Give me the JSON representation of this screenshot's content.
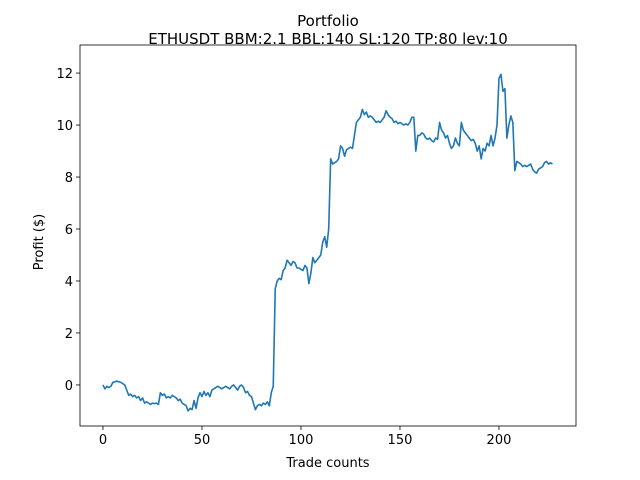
{
  "chart_data": {
    "type": "line",
    "title": "Portfolio",
    "subtitle": "ETHUSDT BBM:2.1 BBL:140 SL:120 TP:80 lev:10",
    "x_label": "Trade counts",
    "y_label": "Profit ($)",
    "color": "#1f77b4",
    "grid": false,
    "xlim": [
      -11.6,
      238.9
    ],
    "ylim": [
      -1.58,
      13.08
    ],
    "xticks": [
      0,
      50,
      100,
      150,
      200
    ],
    "yticks": [
      0,
      2,
      4,
      6,
      8,
      10,
      12
    ],
    "x": [
      0,
      1,
      2,
      3,
      4,
      5,
      6,
      7,
      8,
      9,
      10,
      11,
      12,
      13,
      14,
      15,
      16,
      17,
      18,
      19,
      20,
      21,
      22,
      23,
      24,
      25,
      26,
      27,
      28,
      29,
      30,
      31,
      32,
      33,
      34,
      35,
      36,
      37,
      38,
      39,
      40,
      41,
      42,
      43,
      44,
      45,
      46,
      47,
      48,
      49,
      50,
      51,
      52,
      53,
      54,
      55,
      56,
      57,
      58,
      59,
      60,
      61,
      62,
      63,
      64,
      65,
      66,
      67,
      68,
      69,
      70,
      71,
      72,
      73,
      74,
      75,
      76,
      77,
      78,
      79,
      80,
      81,
      82,
      83,
      84,
      85,
      86,
      87,
      88,
      89,
      90,
      91,
      92,
      93,
      94,
      95,
      96,
      97,
      98,
      99,
      100,
      101,
      102,
      103,
      104,
      105,
      106,
      107,
      108,
      109,
      110,
      111,
      112,
      113,
      114,
      115,
      116,
      117,
      118,
      119,
      120,
      121,
      122,
      123,
      124,
      125,
      126,
      127,
      128,
      129,
      130,
      131,
      132,
      133,
      134,
      135,
      136,
      137,
      138,
      139,
      140,
      141,
      142,
      143,
      144,
      145,
      146,
      147,
      148,
      149,
      150,
      151,
      152,
      153,
      154,
      155,
      156,
      157,
      158,
      159,
      160,
      161,
      162,
      163,
      164,
      165,
      166,
      167,
      168,
      169,
      170,
      171,
      172,
      173,
      174,
      175,
      176,
      177,
      178,
      179,
      180,
      181,
      182,
      183,
      184,
      185,
      186,
      187,
      188,
      189,
      190,
      191,
      192,
      193,
      194,
      195,
      196,
      197,
      198,
      199,
      200,
      201,
      202,
      203,
      204,
      205,
      206,
      207,
      208,
      209,
      210,
      211,
      212,
      213,
      214,
      215,
      216,
      217,
      218,
      219,
      220,
      221,
      222,
      223,
      224,
      225,
      226,
      227
    ],
    "values": [
      0,
      -0.15,
      -0.05,
      -0.1,
      -0.05,
      0.1,
      0.12,
      0.15,
      0.12,
      0.1,
      0.05,
      0.0,
      -0.2,
      -0.4,
      -0.35,
      -0.45,
      -0.4,
      -0.5,
      -0.45,
      -0.6,
      -0.5,
      -0.7,
      -0.65,
      -0.7,
      -0.75,
      -0.7,
      -0.72,
      -0.7,
      -0.75,
      -0.3,
      -0.4,
      -0.35,
      -0.5,
      -0.45,
      -0.5,
      -0.4,
      -0.45,
      -0.5,
      -0.6,
      -0.55,
      -0.7,
      -0.75,
      -0.8,
      -1.0,
      -0.9,
      -0.95,
      -0.6,
      -0.9,
      -0.5,
      -0.3,
      -0.45,
      -0.25,
      -0.4,
      -0.3,
      -0.45,
      -0.2,
      -0.15,
      -0.1,
      -0.05,
      -0.1,
      -0.15,
      -0.1,
      -0.05,
      -0.1,
      -0.15,
      -0.05,
      0.0,
      -0.1,
      -0.2,
      -0.05,
      0.0,
      -0.1,
      -0.3,
      -0.25,
      -0.4,
      -0.45,
      -0.7,
      -0.95,
      -0.8,
      -0.75,
      -0.8,
      -0.7,
      -0.75,
      -0.65,
      -0.8,
      -0.3,
      -0.05,
      3.7,
      4.0,
      4.1,
      4.05,
      4.4,
      4.5,
      4.8,
      4.7,
      4.6,
      4.75,
      4.7,
      4.5,
      4.5,
      4.45,
      4.4,
      4.6,
      4.5,
      3.9,
      4.3,
      4.9,
      4.7,
      4.8,
      4.9,
      5.0,
      5.5,
      5.7,
      5.3,
      6.0,
      8.7,
      8.5,
      8.55,
      8.6,
      8.7,
      9.2,
      9.1,
      8.8,
      9.05,
      9.1,
      9.15,
      9.1,
      9.6,
      10.1,
      10.2,
      10.3,
      10.6,
      10.4,
      10.5,
      10.3,
      10.35,
      10.3,
      10.2,
      10.1,
      10.15,
      10.1,
      10.2,
      10.3,
      10.55,
      10.4,
      10.3,
      10.25,
      10.1,
      10.15,
      10.05,
      10.1,
      10.05,
      10.0,
      10.05,
      10.0,
      10.1,
      10.3,
      10.3,
      9.0,
      9.6,
      9.6,
      9.7,
      9.65,
      9.5,
      9.45,
      9.5,
      9.4,
      9.35,
      9.5,
      9.45,
      10.1,
      9.8,
      9.7,
      9.5,
      9.6,
      9.3,
      9.1,
      9.2,
      9.5,
      9.3,
      9.2,
      10.1,
      9.8,
      9.7,
      9.6,
      9.5,
      9.4,
      9.45,
      9.3,
      9.0,
      9.2,
      8.7,
      9.1,
      9.0,
      9.3,
      9.2,
      9.6,
      9.2,
      9.5,
      10.0,
      11.8,
      11.95,
      11.3,
      11.4,
      9.5,
      10.0,
      10.35,
      10.1,
      8.25,
      8.6,
      8.55,
      8.5,
      8.4,
      8.45,
      8.4,
      8.45,
      8.5,
      8.3,
      8.2,
      8.15,
      8.3,
      8.35,
      8.4,
      8.55,
      8.6,
      8.5,
      8.55,
      8.5
    ]
  }
}
